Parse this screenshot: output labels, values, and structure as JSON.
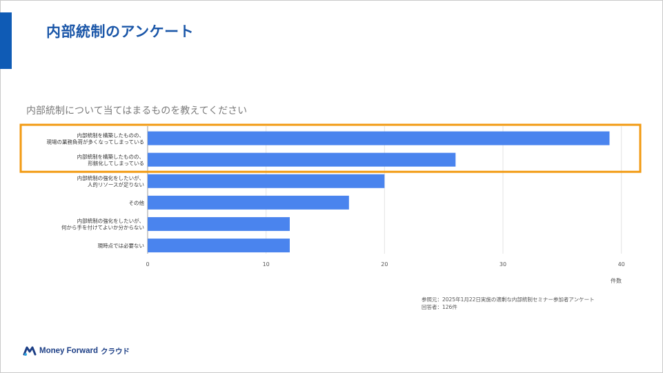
{
  "slide": {
    "title": "内部統制のアンケート",
    "chart_title": "内部統制について当てはまるものを教えてください",
    "source_line1": "参照元：2025年1月22日実施の適剰な内部統制セミナー参加者アンケート",
    "source_line2": "回答者：126件",
    "logo_text": "Money Forward",
    "logo_sub": "クラウド"
  },
  "colors": {
    "accent": "#0f5bb5",
    "title": "#1a56a8",
    "bar": "#4a84ee",
    "highlight": "#f29a11",
    "grid": "#e3e3e3"
  },
  "chart_data": {
    "type": "bar",
    "orientation": "horizontal",
    "categories": [
      [
        "内部統制を構築したものの、",
        "現場の業務負荷が多くなってしまっている"
      ],
      [
        "内部統制を構築したものの、",
        "形骸化してしまっている"
      ],
      [
        "内部統制の強化をしたいが、",
        "人的リソースが足りない"
      ],
      [
        "その他"
      ],
      [
        "内部統制の強化をしたいが、",
        "何から手を付けてよいか分からない"
      ],
      [
        "現時点では必要ない"
      ]
    ],
    "values": [
      39,
      26,
      20,
      17,
      12,
      12
    ],
    "xlim": [
      0,
      42
    ],
    "xticks": [
      0,
      10,
      20,
      30,
      40
    ],
    "xlabel": "件数",
    "highlighted_categories": [
      0,
      1
    ],
    "grid": true
  }
}
